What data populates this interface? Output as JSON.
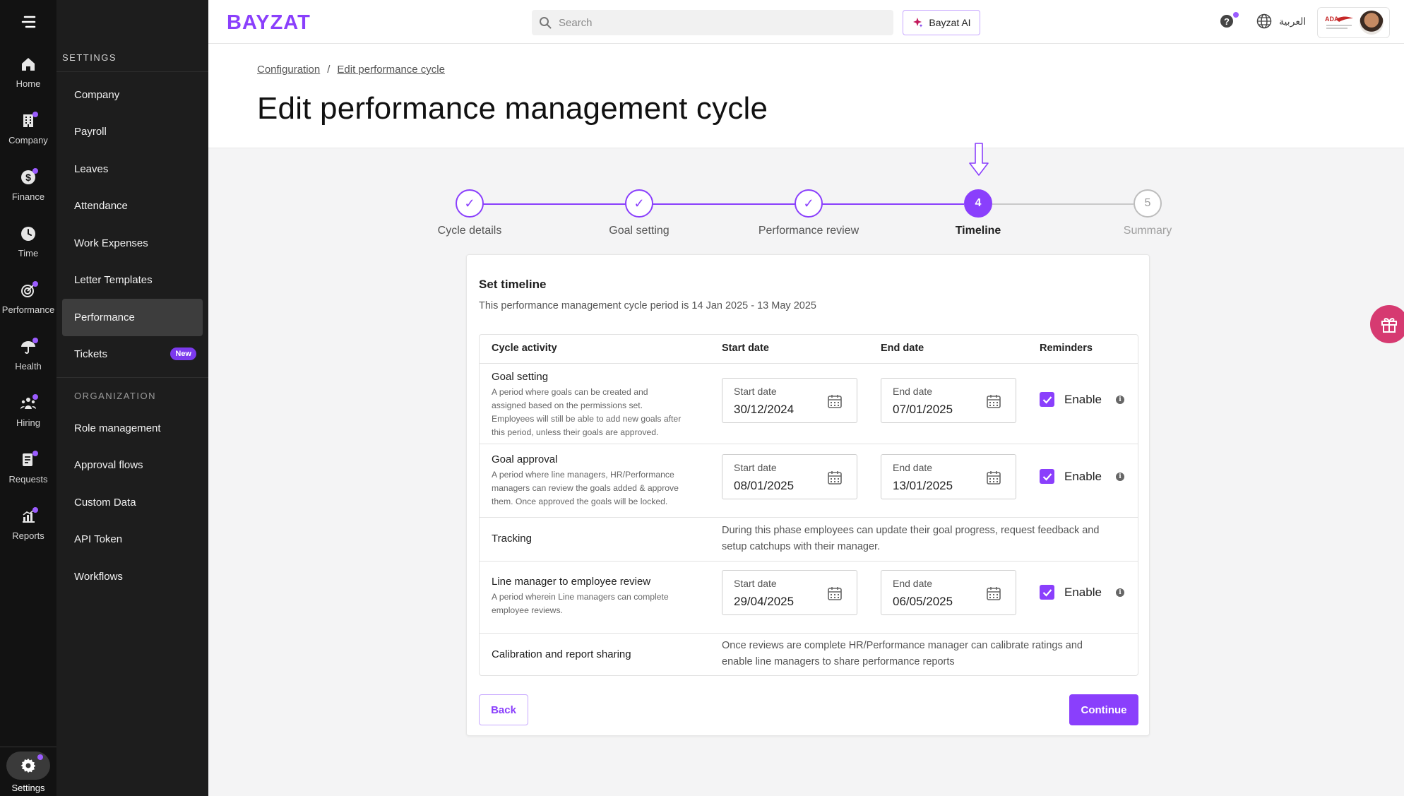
{
  "rail": {
    "items": [
      {
        "label": "Home",
        "icon": "home-icon",
        "dot": false
      },
      {
        "label": "Company",
        "icon": "building-icon",
        "dot": true
      },
      {
        "label": "Finance",
        "icon": "dollar-icon",
        "dot": true
      },
      {
        "label": "Time",
        "icon": "clock-icon",
        "dot": false
      },
      {
        "label": "Performance",
        "icon": "target-icon",
        "dot": true
      },
      {
        "label": "Health",
        "icon": "umbrella-icon",
        "dot": true
      },
      {
        "label": "Hiring",
        "icon": "people-icon",
        "dot": true
      },
      {
        "label": "Requests",
        "icon": "clipboard-icon",
        "dot": true
      },
      {
        "label": "Reports",
        "icon": "chart-icon",
        "dot": true
      }
    ],
    "settings_label": "Settings"
  },
  "settings_panel": {
    "heading": "SETTINGS",
    "items": [
      "Company",
      "Payroll",
      "Leaves",
      "Attendance",
      "Work Expenses",
      "Letter Templates",
      "Performance",
      "Tickets"
    ],
    "active_item": "Performance",
    "new_badge": "New",
    "org_heading": "ORGANIZATION",
    "org_items": [
      "Role management",
      "Approval flows",
      "Custom Data",
      "API Token",
      "Workflows"
    ]
  },
  "topbar": {
    "logo": "BAYZAT",
    "search_placeholder": "Search",
    "ai_button": "Bayzat AI",
    "language": "العربية"
  },
  "breadcrumb": {
    "items": [
      "Configuration",
      "Edit performance cycle"
    ],
    "separator": "/"
  },
  "page_title": "Edit performance management cycle",
  "stepper": {
    "steps": [
      {
        "label": "Cycle details",
        "state": "done",
        "number": "1"
      },
      {
        "label": "Goal setting",
        "state": "done",
        "number": "2"
      },
      {
        "label": "Performance review",
        "state": "done",
        "number": "3"
      },
      {
        "label": "Timeline",
        "state": "current",
        "number": "4"
      },
      {
        "label": "Summary",
        "state": "todo",
        "number": "5"
      }
    ]
  },
  "timeline": {
    "title": "Set timeline",
    "subtitle": "This performance management cycle period is 14 Jan 2025 - 13 May 2025",
    "columns": [
      "Cycle activity",
      "Start date",
      "End date",
      "Reminders"
    ],
    "rows": [
      {
        "name": "Goal setting",
        "desc_lines": [
          "A period where goals can be created and",
          "assigned based on the permissions set.",
          "Employees will still be able to add new goals after",
          "this period, unless their goals are approved."
        ],
        "start_label": "Start date",
        "start_value": "30/12/2024",
        "end_label": "End date",
        "end_value": "07/01/2025",
        "reminder": "Enable"
      },
      {
        "name": "Goal approval",
        "desc_lines": [
          "A period where line managers, HR/Performance",
          "managers can review the goals added & approve",
          "them. Once approved the goals will be locked."
        ],
        "start_label": "Start date",
        "start_value": "08/01/2025",
        "end_label": "End date",
        "end_value": "13/01/2025",
        "reminder": "Enable"
      },
      {
        "name": "Tracking",
        "note_lines": [
          "During this phase employees can update their goal progress, request feedback and",
          "setup catchups with their manager."
        ]
      },
      {
        "name": "Line manager to employee review",
        "desc_lines": [
          "A period wherein Line managers can complete",
          "employee reviews."
        ],
        "start_label": "Start date",
        "start_value": "29/04/2025",
        "end_label": "End date",
        "end_value": "06/05/2025",
        "reminder": "Enable"
      },
      {
        "name": "Calibration and report sharing",
        "note_lines": [
          "Once reviews are complete HR/Performance manager can calibrate ratings and",
          "enable line managers to share performance reports"
        ]
      }
    ],
    "back_button": "Back",
    "continue_button": "Continue"
  },
  "colors": {
    "accent": "#8a3ffc",
    "rail_bg": "#121212",
    "panel_bg": "#1d1d1d",
    "gift": "#d63a71"
  }
}
